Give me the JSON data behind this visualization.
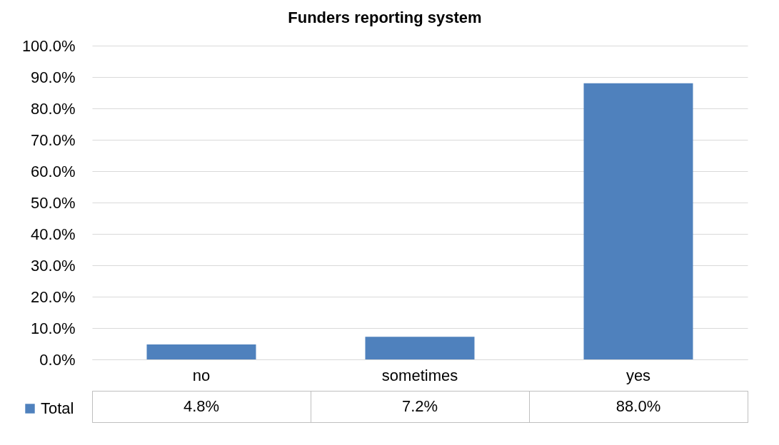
{
  "chart_data": {
    "type": "bar",
    "title": "Funders reporting system",
    "categories": [
      "no",
      "sometimes",
      "yes"
    ],
    "series": [
      {
        "name": "Total",
        "color": "#4f81bd",
        "values": [
          4.8,
          7.2,
          88.0
        ],
        "value_labels": [
          "4.8%",
          "7.2%",
          "88.0%"
        ]
      }
    ],
    "ylim": [
      0,
      100
    ],
    "yticks": [
      {
        "value": 0,
        "label": "0.0%"
      },
      {
        "value": 10,
        "label": "10.0%"
      },
      {
        "value": 20,
        "label": "20.0%"
      },
      {
        "value": 30,
        "label": "30.0%"
      },
      {
        "value": 40,
        "label": "40.0%"
      },
      {
        "value": 50,
        "label": "50.0%"
      },
      {
        "value": 60,
        "label": "60.0%"
      },
      {
        "value": 70,
        "label": "70.0%"
      },
      {
        "value": 80,
        "label": "80.0%"
      },
      {
        "value": 90,
        "label": "90.0%"
      },
      {
        "value": 100,
        "label": "100.0%"
      }
    ],
    "grid": "y",
    "legend": "bottom left"
  }
}
